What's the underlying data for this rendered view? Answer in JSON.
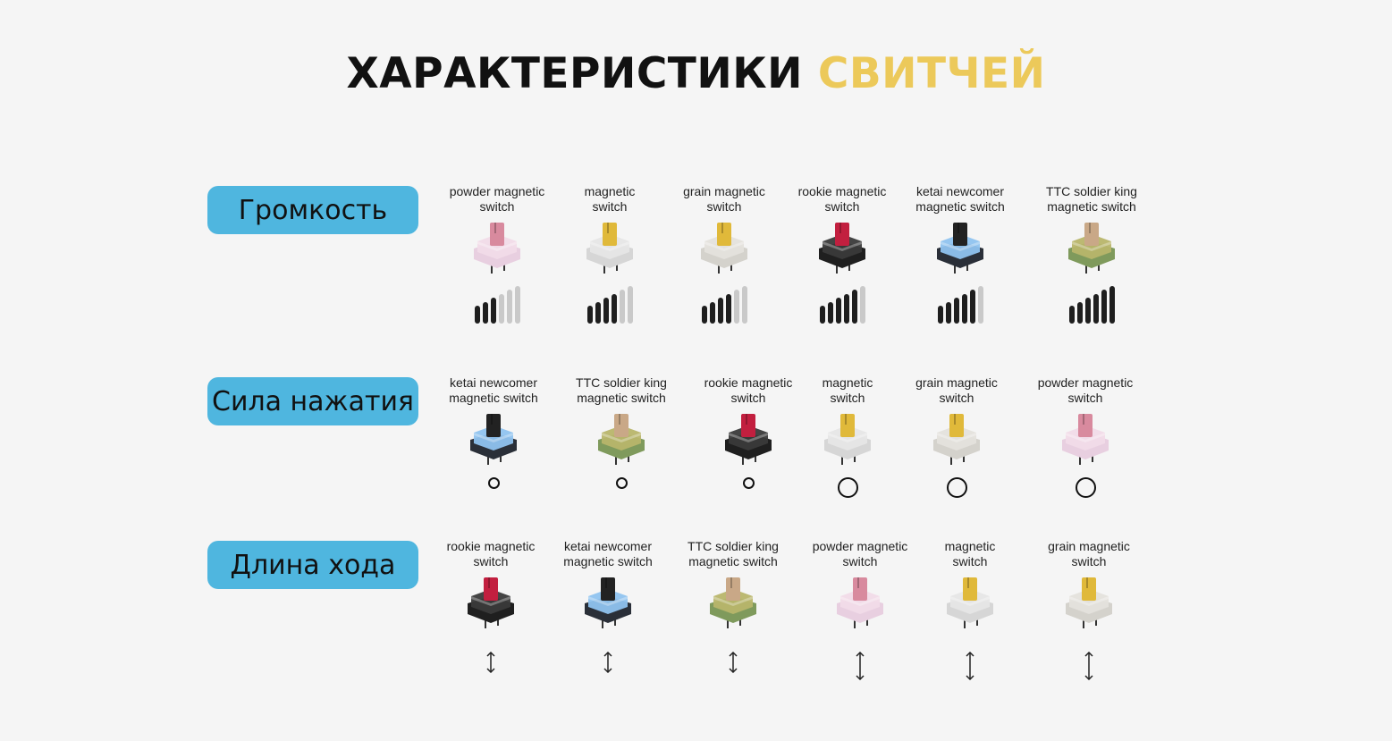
{
  "title": {
    "main": "ХАРАКТЕРИСТИКИ",
    "accent": "СВИТЧЕЙ",
    "accent_color": "#ecc95a"
  },
  "pill_color": "#4fb6df",
  "switch_colors": {
    "powder magnetic switch": {
      "stem": "#d88a9e",
      "top": "#f1dbe8",
      "bottom": "#e8cfe0"
    },
    "magnetic switch": {
      "stem": "#e0b93a",
      "top": "#e6e6e6",
      "bottom": "#d6d6d6"
    },
    "grain magnetic switch": {
      "stem": "#e0b93a",
      "top": "#e4e2dc",
      "bottom": "#d4d2cc"
    },
    "rookie magnetic switch": {
      "stem": "#c21f3f",
      "top": "#3a3a3a",
      "bottom": "#1f1f1f"
    },
    "ketai newcomer magnetic switch": {
      "stem": "#222222",
      "top": "#8fc3ef",
      "bottom": "#2a2f38"
    },
    "TTC soldier king magnetic switch": {
      "stem": "#c9a887",
      "top": "#b8b56a",
      "bottom": "#7f9a5c"
    }
  },
  "sections": [
    {
      "label": "Громкость",
      "indicator": "volume-bars",
      "items": [
        {
          "name": "powder magnetic switch",
          "lines": [
            "powder magnetic",
            "switch"
          ],
          "level": 3,
          "max": 6
        },
        {
          "name": "magnetic switch",
          "lines": [
            "magnetic",
            "switch"
          ],
          "level": 4,
          "max": 6
        },
        {
          "name": "grain magnetic switch",
          "lines": [
            "grain magnetic",
            "switch"
          ],
          "level": 4,
          "max": 6
        },
        {
          "name": "rookie magnetic switch",
          "lines": [
            "rookie magnetic",
            "switch"
          ],
          "level": 5,
          "max": 6
        },
        {
          "name": "ketai newcomer magnetic switch",
          "lines": [
            "ketai newcomer",
            "magnetic switch"
          ],
          "level": 5,
          "max": 6
        },
        {
          "name": "TTC soldier king magnetic switch",
          "lines": [
            "TTC soldier king",
            "magnetic switch"
          ],
          "level": 6,
          "max": 6
        }
      ]
    },
    {
      "label": "Сила нажатия",
      "indicator": "circle",
      "items": [
        {
          "name": "ketai newcomer magnetic switch",
          "lines": [
            "ketai newcomer",
            "magnetic switch"
          ],
          "size": "small"
        },
        {
          "name": "TTC soldier king magnetic switch",
          "lines": [
            "TTC soldier king",
            "magnetic switch"
          ],
          "size": "small"
        },
        {
          "name": "rookie magnetic switch",
          "lines": [
            "rookie magnetic",
            "switch"
          ],
          "size": "small"
        },
        {
          "name": "magnetic switch",
          "lines": [
            "magnetic",
            "switch"
          ],
          "size": "large"
        },
        {
          "name": "grain magnetic switch",
          "lines": [
            "grain magnetic",
            "switch"
          ],
          "size": "large"
        },
        {
          "name": "powder magnetic switch",
          "lines": [
            "powder magnetic",
            "switch"
          ],
          "size": "large"
        }
      ]
    },
    {
      "label": "Длина хода",
      "indicator": "arrow",
      "items": [
        {
          "name": "rookie magnetic switch",
          "lines": [
            "rookie magnetic",
            "switch"
          ],
          "size": "short"
        },
        {
          "name": "ketai newcomer magnetic switch",
          "lines": [
            "ketai newcomer",
            "magnetic switch"
          ],
          "size": "short"
        },
        {
          "name": "TTC soldier king magnetic switch",
          "lines": [
            "TTC soldier king",
            "magnetic switch"
          ],
          "size": "short"
        },
        {
          "name": "powder magnetic switch",
          "lines": [
            "powder magnetic",
            "switch"
          ],
          "size": "long"
        },
        {
          "name": "magnetic switch",
          "lines": [
            "magnetic",
            "switch"
          ],
          "size": "long"
        },
        {
          "name": "grain magnetic switch",
          "lines": [
            "grain magnetic",
            "switch"
          ],
          "size": "long"
        }
      ]
    }
  ]
}
